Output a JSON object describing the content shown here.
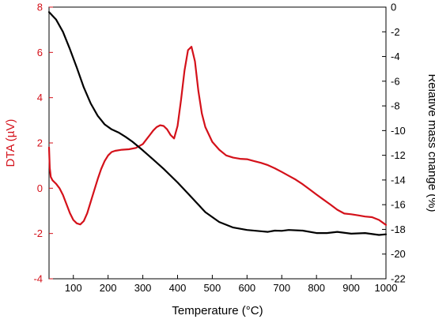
{
  "chart_data": {
    "type": "line",
    "x": {
      "label": "Temperature (°C)",
      "range": [
        30,
        1000
      ],
      "ticks": [
        100,
        200,
        300,
        400,
        500,
        600,
        700,
        800,
        900,
        1000
      ]
    },
    "y_left": {
      "label": "DTA (µV)",
      "range": [
        -4,
        8
      ],
      "ticks": [
        -4,
        -2,
        0,
        2,
        4,
        6,
        8
      ],
      "color": "#d4111a"
    },
    "y_right": {
      "label": "Relative mass change (%)",
      "range": [
        -22,
        0
      ],
      "ticks": [
        -22,
        -20,
        -18,
        -16,
        -14,
        -12,
        -10,
        -8,
        -6,
        -4,
        -2,
        0
      ],
      "color": "#000000"
    },
    "series": [
      {
        "axis": "left",
        "color": "#d4111a",
        "x": [
          30,
          32,
          35,
          40,
          50,
          60,
          70,
          80,
          90,
          100,
          110,
          120,
          130,
          140,
          150,
          160,
          170,
          180,
          190,
          200,
          210,
          220,
          240,
          260,
          280,
          300,
          310,
          320,
          330,
          340,
          350,
          360,
          370,
          380,
          390,
          400,
          410,
          420,
          430,
          440,
          450,
          460,
          470,
          480,
          500,
          520,
          540,
          560,
          580,
          600,
          620,
          640,
          660,
          680,
          700,
          720,
          740,
          760,
          780,
          800,
          820,
          840,
          860,
          880,
          900,
          920,
          940,
          960,
          980,
          1000
        ],
        "y": [
          1.8,
          0.9,
          0.5,
          0.35,
          0.2,
          0.0,
          -0.3,
          -0.7,
          -1.1,
          -1.4,
          -1.55,
          -1.6,
          -1.45,
          -1.1,
          -0.6,
          -0.1,
          0.4,
          0.85,
          1.2,
          1.45,
          1.6,
          1.65,
          1.7,
          1.72,
          1.78,
          1.95,
          2.15,
          2.35,
          2.55,
          2.7,
          2.78,
          2.75,
          2.6,
          2.35,
          2.2,
          2.75,
          3.9,
          5.2,
          6.1,
          6.25,
          5.6,
          4.3,
          3.3,
          2.7,
          2.05,
          1.7,
          1.45,
          1.35,
          1.3,
          1.28,
          1.2,
          1.12,
          1.02,
          0.88,
          0.72,
          0.55,
          0.38,
          0.18,
          -0.05,
          -0.28,
          -0.5,
          -0.72,
          -0.95,
          -1.12,
          -1.15,
          -1.2,
          -1.25,
          -1.28,
          -1.4,
          -1.62
        ]
      },
      {
        "axis": "right",
        "color": "#000000",
        "x": [
          30,
          50,
          70,
          90,
          110,
          130,
          150,
          170,
          190,
          210,
          230,
          250,
          270,
          300,
          330,
          360,
          400,
          440,
          480,
          520,
          560,
          600,
          640,
          660,
          680,
          700,
          720,
          760,
          800,
          830,
          860,
          900,
          940,
          980,
          1000
        ],
        "y": [
          -0.4,
          -1.0,
          -2.0,
          -3.4,
          -4.9,
          -6.5,
          -7.8,
          -8.8,
          -9.5,
          -9.9,
          -10.15,
          -10.5,
          -10.9,
          -11.6,
          -12.35,
          -13.1,
          -14.2,
          -15.4,
          -16.6,
          -17.4,
          -17.85,
          -18.05,
          -18.15,
          -18.2,
          -18.1,
          -18.12,
          -18.05,
          -18.1,
          -18.3,
          -18.3,
          -18.2,
          -18.35,
          -18.3,
          -18.45,
          -18.4
        ]
      }
    ]
  }
}
